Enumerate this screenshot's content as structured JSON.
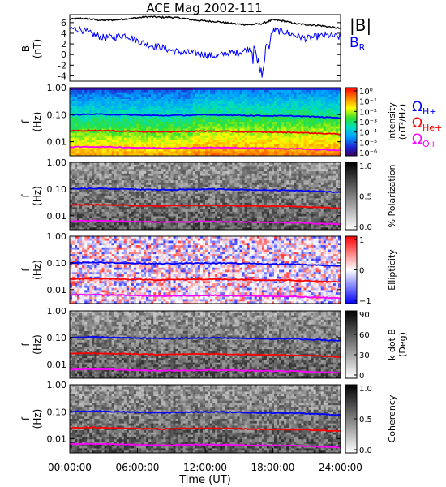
{
  "title": "ACE Mag 2002-111",
  "x_axis": {
    "label": "Time (UT)",
    "ticks": [
      "00:00:00",
      "06:00:00",
      "12:00:00",
      "18:00:00",
      "24:00:00"
    ]
  },
  "legends": {
    "b_total": "|B|",
    "b_r": "B",
    "b_r_sub": "R",
    "omega": "Ω",
    "h_sub": "H+",
    "he_sub": "He+",
    "o_sub": "O+"
  },
  "colors": {
    "b_total": "#000000",
    "b_r": "#0000ff",
    "omega_h": "#0000ff",
    "omega_he": "#ff0000",
    "omega_o": "#ff00ff"
  },
  "panels": [
    {
      "ylabel": "B",
      "yunit": "(nT)",
      "ticks": [
        "6",
        "4",
        "2",
        "0",
        "-2",
        "-4"
      ]
    },
    {
      "ylabel": "f",
      "yunit": "(Hz)",
      "ticks": [
        "1.00",
        "0.10",
        "0.01"
      ],
      "colorbar": "Intensity",
      "colorbar_unit": "(nT²/Hz)",
      "cb_ticks": [
        "10⁰",
        "10⁻¹",
        "10⁻²",
        "10⁻³",
        "10⁻⁴",
        "10⁻⁵",
        "10⁻⁶"
      ]
    },
    {
      "ylabel": "f",
      "yunit": "(Hz)",
      "ticks": [
        "1.00",
        "0.10",
        "0.01"
      ],
      "colorbar": "% Polarization",
      "colorbar_unit": "",
      "cb_ticks": [
        "1.0",
        "0.5",
        "0.0"
      ]
    },
    {
      "ylabel": "f",
      "yunit": "(Hz)",
      "ticks": [
        "1.00",
        "0.10",
        "0.01"
      ],
      "colorbar": "Ellipticity",
      "colorbar_unit": "",
      "cb_ticks": [
        "1",
        "0",
        "−1"
      ]
    },
    {
      "ylabel": "f",
      "yunit": "(Hz)",
      "ticks": [
        "1.00",
        "0.10",
        "0.01"
      ],
      "colorbar": "k dot B",
      "colorbar_unit": "(Deg)",
      "cb_ticks": [
        "90",
        "60",
        "30",
        "0"
      ]
    },
    {
      "ylabel": "f",
      "yunit": "(Hz)",
      "ticks": [
        "1.00",
        "0.10",
        "0.01"
      ],
      "colorbar": "Coherency",
      "colorbar_unit": "",
      "cb_ticks": [
        "1.0",
        "0.5",
        "0.0"
      ]
    }
  ],
  "chart_data": {
    "type": "line",
    "title": "ACE Mag 2002-111",
    "xlabel": "Time (UT)",
    "xlim_hours": [
      0,
      24
    ],
    "panels": [
      {
        "kind": "timeseries",
        "ylabel": "B (nT)",
        "ylim": [
          -5,
          7.5
        ],
        "x_hours": [
          0,
          1,
          2,
          3,
          4,
          5,
          6,
          7,
          8,
          9,
          10,
          11,
          12,
          13,
          14,
          15,
          16,
          17,
          18,
          19,
          20,
          21,
          22,
          23,
          24
        ],
        "series": [
          {
            "name": "|B|",
            "values": [
              6.6,
              6.8,
              6.6,
              6.4,
              6.5,
              6.7,
              6.9,
              7.1,
              7.0,
              7.0,
              6.8,
              6.5,
              6.3,
              6.2,
              5.9,
              5.7,
              5.6,
              5.8,
              6.5,
              6.3,
              5.8,
              5.6,
              5.5,
              5.2,
              4.9
            ]
          },
          {
            "name": "B_R",
            "values": [
              4.9,
              4.7,
              3.8,
              3.2,
              3.3,
              3.7,
              2.6,
              1.8,
              1.4,
              0.8,
              0.4,
              0.3,
              0.0,
              -0.3,
              0.3,
              0.4,
              1.2,
              -2.8,
              4.5,
              4.3,
              3.6,
              3.0,
              3.4,
              3.6,
              3.2
            ]
          }
        ]
      },
      {
        "kind": "spectrogram",
        "quantity": "Intensity",
        "ylabel": "f (Hz)",
        "yscale": "log",
        "ylim": [
          0.003,
          1.0
        ],
        "zscale": "log",
        "zlim": [
          1e-06,
          1
        ]
      },
      {
        "kind": "spectrogram",
        "quantity": "% Polarization",
        "ylabel": "f (Hz)",
        "yscale": "log",
        "ylim": [
          0.003,
          1.0
        ],
        "zlim": [
          0,
          1
        ]
      },
      {
        "kind": "spectrogram",
        "quantity": "Ellipticity",
        "ylabel": "f (Hz)",
        "yscale": "log",
        "ylim": [
          0.003,
          1.0
        ],
        "zlim": [
          -1,
          1
        ]
      },
      {
        "kind": "spectrogram",
        "quantity": "k dot B (Deg)",
        "ylabel": "f (Hz)",
        "yscale": "log",
        "ylim": [
          0.003,
          1.0
        ],
        "zlim": [
          0,
          90
        ]
      },
      {
        "kind": "spectrogram",
        "quantity": "Coherency",
        "ylabel": "f (Hz)",
        "yscale": "log",
        "ylim": [
          0.003,
          1.0
        ],
        "zlim": [
          0,
          1
        ]
      }
    ],
    "gyrofrequency_lines": {
      "x_hours": [
        0,
        2,
        4,
        6,
        8,
        10,
        12,
        14,
        16,
        18,
        20,
        22,
        24
      ],
      "series": [
        {
          "name": "ΩH+",
          "values_hz": [
            0.1,
            0.104,
            0.101,
            0.096,
            0.093,
            0.095,
            0.098,
            0.097,
            0.093,
            0.09,
            0.089,
            0.082,
            0.076
          ]
        },
        {
          "name": "ΩHe+",
          "values_hz": [
            0.025,
            0.026,
            0.025,
            0.024,
            0.023,
            0.024,
            0.0245,
            0.024,
            0.023,
            0.0225,
            0.022,
            0.0205,
            0.019
          ]
        },
        {
          "name": "ΩO+",
          "values_hz": [
            0.0063,
            0.0065,
            0.0063,
            0.006,
            0.0058,
            0.0059,
            0.0061,
            0.006,
            0.0058,
            0.0056,
            0.0055,
            0.0051,
            0.0048
          ]
        }
      ]
    }
  }
}
